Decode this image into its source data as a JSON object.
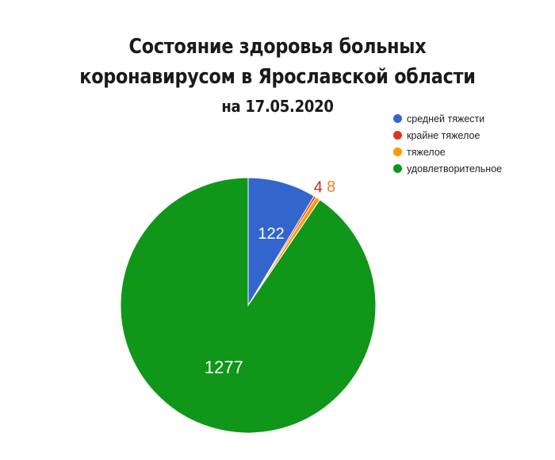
{
  "chart_data": {
    "type": "pie",
    "title": "Состояние здоровья больных коронавирусом в Ярославской области",
    "title_lines": [
      "Состояние здоровья больных",
      "коронавирусом в Ярославской области"
    ],
    "subtitle": "на 17.05.2020",
    "start_angle_deg": 0,
    "direction": "clockwise",
    "legend_position": "top-right",
    "slices": [
      {
        "label": "средней тяжести",
        "value": 122,
        "color": "#3366cc",
        "label_color": "#ffffff"
      },
      {
        "label": "крайне тяжелое",
        "value": 4,
        "color": "#dc3912",
        "label_color": "#b7321c"
      },
      {
        "label": "тяжелое",
        "value": 8,
        "color": "#ff9900",
        "label_color": "#e8862c"
      },
      {
        "label": "удовлетворительное",
        "value": 1277,
        "color": "#109618",
        "label_color": "#ffffff"
      }
    ]
  }
}
